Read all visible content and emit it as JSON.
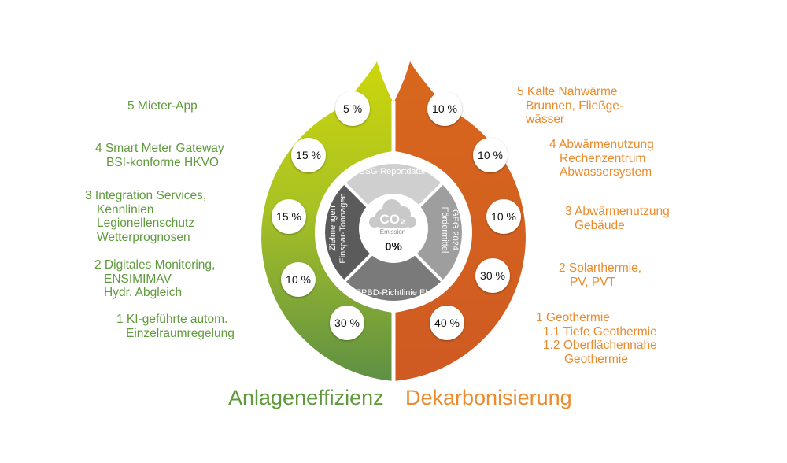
{
  "left_items": [
    {
      "lines": [
        "5 Mieter-App"
      ],
      "percent": "5 %"
    },
    {
      "lines": [
        "4 Smart Meter Gateway",
        "BSI-konforme HKVO"
      ],
      "percent": "15 %"
    },
    {
      "lines": [
        "3 Integration Services,",
        "Kennlinien",
        "Legionellenschutz",
        "Wetterprognosen"
      ],
      "percent": "15 %"
    },
    {
      "lines": [
        "2 Digitales Monitoring,",
        "ENSIMIMAV",
        "Hydr. Abgleich"
      ],
      "percent": "10 %"
    },
    {
      "lines": [
        "1 KI-geführte autom.",
        "Einzelraumregelung"
      ],
      "percent": "30 %"
    }
  ],
  "right_items": [
    {
      "lines": [
        "5 Kalte Nahwärme",
        "Brunnen, Fließge-",
        "wässer"
      ],
      "percent": "10 %"
    },
    {
      "lines": [
        "4 Abwärmenutzung",
        "Rechenzentrum",
        "Abwassersystem"
      ],
      "percent": "10 %"
    },
    {
      "lines": [
        "3 Abwärmenutzung",
        "Gebäude"
      ],
      "percent": "10 %"
    },
    {
      "lines": [
        "2 Solarthermie,",
        "PV, PVT"
      ],
      "percent": "30 %"
    },
    {
      "lines": [
        "1 Geothermie",
        "1.1 Tiefe Geothermie",
        "1.2 Oberflächennahe",
        "Geothermie"
      ],
      "percent": "40 %"
    }
  ],
  "center": {
    "top": "ESG-Reportdaten",
    "right_lines": [
      "GEG 2024",
      "Fördermittel"
    ],
    "bottom": "EPBD-Richtlinie EU",
    "left_lines": [
      "Zielmengen",
      "Einspar-Tonnagen"
    ],
    "cloud_label": "CO₂",
    "cloud_sub": "Emission",
    "value": "0%"
  },
  "titles": {
    "left": "Anlageneffizienz",
    "right": "Dekarbonisierung"
  },
  "colors": {
    "left_title": "#5f9a3c",
    "right_title": "#ec8a2c",
    "left_gradient_top": "#cdd60b",
    "left_gradient_bottom": "#5d8f45",
    "right_fill": "#d4621f",
    "center_top": "#cfcfcf",
    "center_right": "#9e9e9e",
    "center_bottom": "#7a7a7a",
    "center_left": "#5b5b5b"
  }
}
